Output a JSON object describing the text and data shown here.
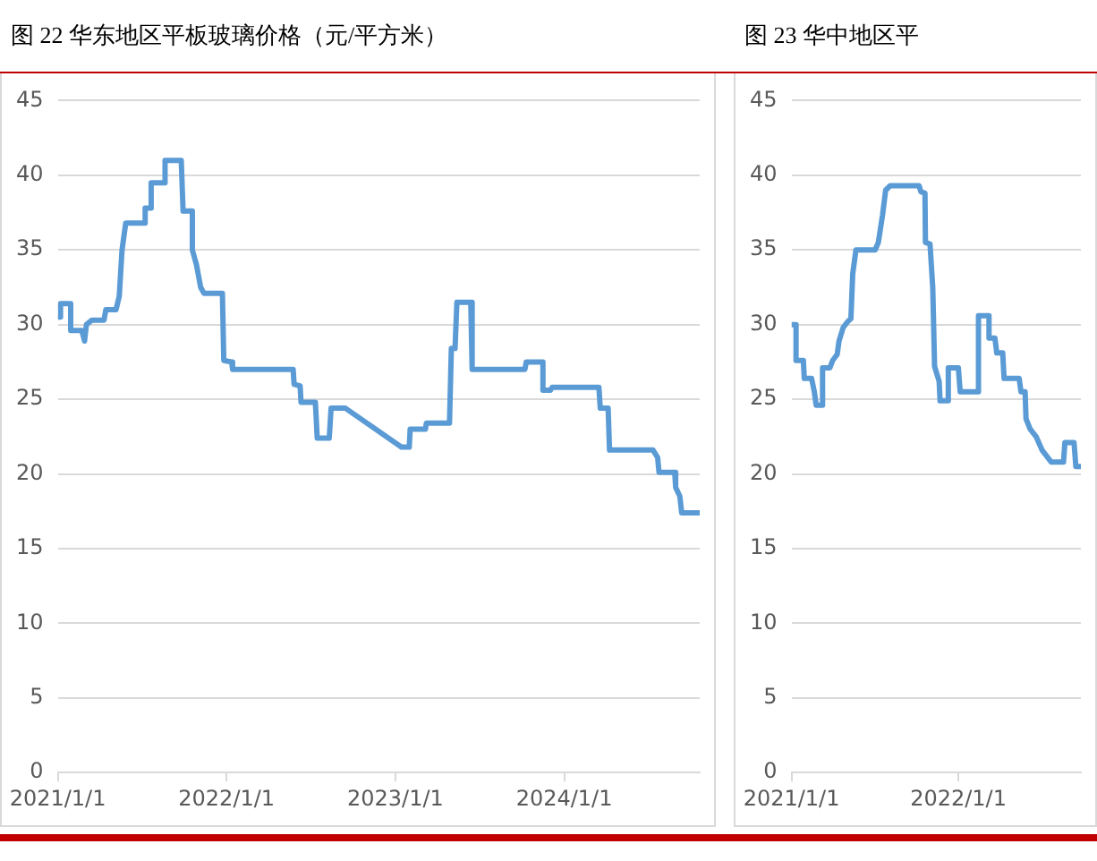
{
  "chart_data": [
    {
      "type": "line",
      "title": "图 22 华东地区平板玻璃价格（元/平方米）",
      "xlim": [
        "2021-01-01",
        "2024-10-20"
      ],
      "xticks": [
        {
          "value": "2021-01-01",
          "label": "2021/1/1"
        },
        {
          "value": "2022-01-01",
          "label": "2022/1/1"
        },
        {
          "value": "2023-01-01",
          "label": "2023/1/1"
        },
        {
          "value": "2024-01-01",
          "label": "2024/1/1"
        }
      ],
      "ylim": [
        0,
        45
      ],
      "yticks": [
        0,
        5,
        10,
        15,
        20,
        25,
        30,
        35,
        40,
        45
      ],
      "grid": "y",
      "marker": "none",
      "series": [
        {
          "color": "#5b9bd5",
          "x": [
            "2021-01-01",
            "2021-01-07",
            "2021-01-07",
            "2021-01-29",
            "2021-01-29",
            "2021-02-22",
            "2021-02-28",
            "2021-03-04",
            "2021-03-16",
            "2021-04-11",
            "2021-04-15",
            "2021-05-07",
            "2021-05-14",
            "2021-05-20",
            "2021-05-28",
            "2021-07-09",
            "2021-07-09",
            "2021-07-22",
            "2021-07-22",
            "2021-08-21",
            "2021-08-21",
            "2021-09-25",
            "2021-09-29",
            "2021-10-19",
            "2021-10-19",
            "2021-10-28",
            "2021-11-06",
            "2021-11-13",
            "2021-12-23",
            "2021-12-26",
            "2022-01-12",
            "2022-01-14",
            "2022-05-25",
            "2022-05-27",
            "2022-06-09",
            "2022-06-11",
            "2022-07-12",
            "2022-07-16",
            "2022-08-11",
            "2022-08-15",
            "2022-09-15",
            "2023-01-14",
            "2023-01-31",
            "2023-02-02",
            "2023-03-07",
            "2023-03-09",
            "2023-04-28",
            "2023-05-02",
            "2023-05-10",
            "2023-05-14",
            "2023-06-13",
            "2023-06-16",
            "2023-10-08",
            "2023-10-11",
            "2023-11-16",
            "2023-11-16",
            "2023-12-02",
            "2023-12-06",
            "2024-03-16",
            "2024-03-19",
            "2024-04-05",
            "2024-04-08",
            "2024-07-11",
            "2024-07-21",
            "2024-07-24",
            "2024-08-27",
            "2024-08-29",
            "2024-09-07",
            "2024-09-11",
            "2024-10-20"
          ],
          "values": [
            30.5,
            30.5,
            31.4,
            31.4,
            29.6,
            29.6,
            28.9,
            30.0,
            30.3,
            30.3,
            31.0,
            31.0,
            31.9,
            35.0,
            36.8,
            36.8,
            37.8,
            37.8,
            39.5,
            39.5,
            41.0,
            41.0,
            37.6,
            37.6,
            35.0,
            34.0,
            32.5,
            32.1,
            32.1,
            27.6,
            27.5,
            27.0,
            27.0,
            26.0,
            25.9,
            24.8,
            24.8,
            22.4,
            22.4,
            24.4,
            24.4,
            21.8,
            21.8,
            23.0,
            23.0,
            23.4,
            23.4,
            28.4,
            28.4,
            31.5,
            31.5,
            27.0,
            27.0,
            27.5,
            27.5,
            25.6,
            25.6,
            25.8,
            25.8,
            24.4,
            24.4,
            21.6,
            21.6,
            21.1,
            20.1,
            20.1,
            19.1,
            18.5,
            17.4,
            17.4
          ]
        }
      ]
    },
    {
      "type": "line",
      "title": "图 23 华中地区平",
      "xlim": [
        "2021-01-01",
        "2022-09-26"
      ],
      "xticks": [
        {
          "value": "2021-01-01",
          "label": "2021/1/1"
        },
        {
          "value": "2022-01-01",
          "label": "2022/1/1"
        }
      ],
      "ylim": [
        0,
        45
      ],
      "yticks": [
        0,
        5,
        10,
        15,
        20,
        25,
        30,
        35,
        40,
        45
      ],
      "grid": "y",
      "marker": "none",
      "series": [
        {
          "color": "#5b9bd5",
          "x": [
            "2021-01-01",
            "2021-01-11",
            "2021-01-11",
            "2021-01-27",
            "2021-01-29",
            "2021-02-14",
            "2021-02-20",
            "2021-02-24",
            "2021-03-08",
            "2021-03-10",
            "2021-03-26",
            "2021-04-01",
            "2021-04-11",
            "2021-04-15",
            "2021-04-24",
            "2021-05-04",
            "2021-05-11",
            "2021-05-15",
            "2021-05-22",
            "2021-07-03",
            "2021-07-10",
            "2021-07-19",
            "2021-07-26",
            "2021-08-05",
            "2021-10-07",
            "2021-10-11",
            "2021-10-20",
            "2021-10-21",
            "2021-10-31",
            "2021-11-06",
            "2021-11-10",
            "2021-11-20",
            "2021-11-22",
            "2021-12-07",
            "2021-12-10",
            "2022-01-01",
            "2022-01-05",
            "2022-02-11",
            "2022-02-14",
            "2022-03-09",
            "2022-03-09",
            "2022-03-22",
            "2022-03-26",
            "2022-04-08",
            "2022-04-11",
            "2022-05-14",
            "2022-05-18",
            "2022-05-27",
            "2022-05-29",
            "2022-06-07",
            "2022-06-20",
            "2022-07-03",
            "2022-07-23",
            "2022-08-19",
            "2022-08-22",
            "2022-09-11",
            "2022-09-15",
            "2022-09-26"
          ],
          "values": [
            30.0,
            30.0,
            27.6,
            27.6,
            26.4,
            26.4,
            25.5,
            24.6,
            24.6,
            27.1,
            27.1,
            27.6,
            28.0,
            28.9,
            29.8,
            30.2,
            30.4,
            33.4,
            35.0,
            35.0,
            35.5,
            37.3,
            39.0,
            39.3,
            39.3,
            38.9,
            38.8,
            35.5,
            35.4,
            32.5,
            27.2,
            26.2,
            24.9,
            24.9,
            27.1,
            27.1,
            25.5,
            25.5,
            30.6,
            30.6,
            29.1,
            29.1,
            28.1,
            28.1,
            26.4,
            26.4,
            25.5,
            25.5,
            23.7,
            23.0,
            22.5,
            21.6,
            20.8,
            20.8,
            22.1,
            22.1,
            20.5,
            20.5
          ]
        }
      ]
    }
  ]
}
